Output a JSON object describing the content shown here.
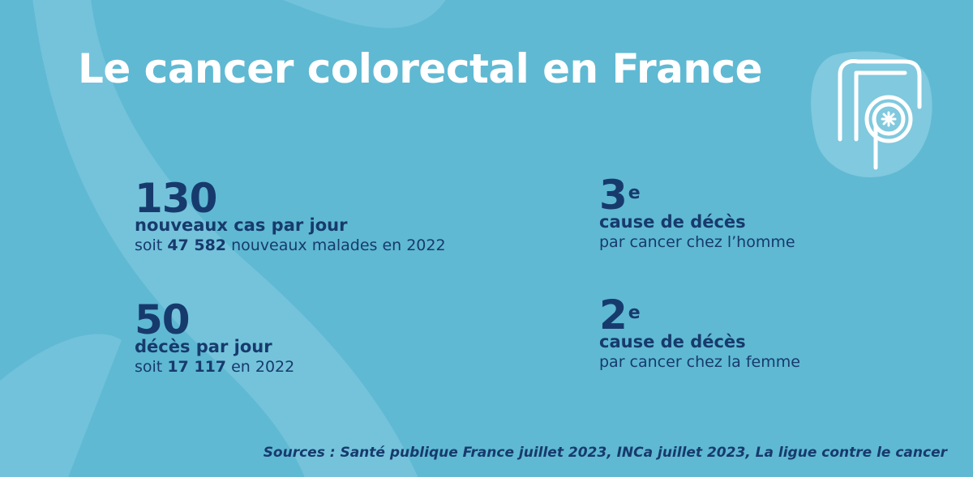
{
  "title": "Le cancer colorectal en France",
  "stats": {
    "new_cases": {
      "value": "130",
      "label": "nouveaux cas par jour",
      "prefix": "soit",
      "figure": "47 582",
      "suffix": "nouveaux malades en 2022"
    },
    "deaths": {
      "value": "50",
      "label": "décès par jour",
      "prefix": "soit",
      "figure": "17 117",
      "suffix": "en 2022"
    },
    "men_rank": {
      "value": "3",
      "superscript": "e",
      "label": "cause de décès",
      "sub": "par cancer chez l’homme"
    },
    "women_rank": {
      "value": "2",
      "superscript": "e",
      "label": "cause de décès",
      "sub": "par cancer chez la femme"
    }
  },
  "sources": "Sources : Santé publique France juillet 2023, INCa juillet 2023, La ligue contre le cancer",
  "icon": "colon-icon",
  "colors": {
    "background": "#5fb9d3",
    "text_dark": "#173a6d",
    "text_light": "#ffffff"
  }
}
